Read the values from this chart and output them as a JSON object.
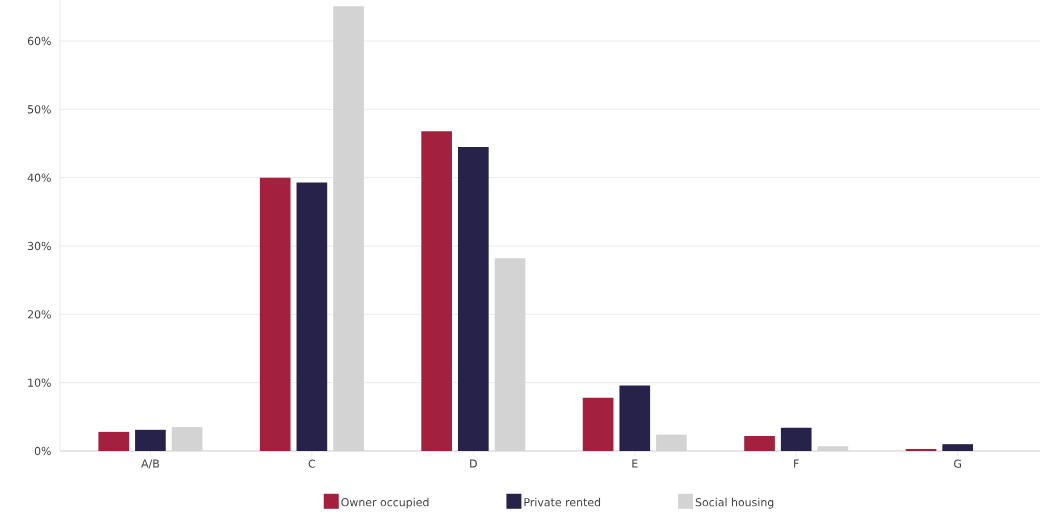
{
  "chart_data": {
    "type": "bar",
    "categories": [
      "A/B",
      "C",
      "D",
      "E",
      "F",
      "G"
    ],
    "series": [
      {
        "name": "Owner occupied",
        "color": "#a3203f",
        "values": [
          2.8,
          40.0,
          46.8,
          7.8,
          2.2,
          0.3
        ]
      },
      {
        "name": "Private rented",
        "color": "#262249",
        "values": [
          3.1,
          39.3,
          44.5,
          9.6,
          3.4,
          1.0
        ]
      },
      {
        "name": "Social housing",
        "color": "#d3d3d3",
        "values": [
          3.5,
          65.1,
          28.2,
          2.4,
          0.7,
          0.0
        ]
      }
    ],
    "ylim": [
      0,
      66
    ],
    "yticks": [
      {
        "value": 0,
        "label": "0%"
      },
      {
        "value": 10,
        "label": "10%"
      },
      {
        "value": 20,
        "label": "20%"
      },
      {
        "value": 30,
        "label": "30%"
      },
      {
        "value": 40,
        "label": "40%"
      },
      {
        "value": 50,
        "label": "50%"
      },
      {
        "value": 60,
        "label": "60%"
      }
    ],
    "grid": "y",
    "legend": "bottom"
  }
}
